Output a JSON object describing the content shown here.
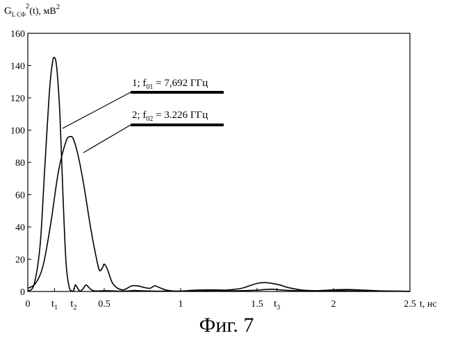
{
  "chart_data": {
    "type": "line",
    "ylabel_main": "G",
    "ylabel_sub": "L CΦ",
    "ylabel_sup": "2",
    "ylabel_rest": "(t), мВ",
    "ylabel_sup2": "2",
    "xlabel": "t, нс",
    "xlim": [
      0,
      2.5
    ],
    "ylim": [
      0,
      160
    ],
    "x_ticks": [
      {
        "value": 0,
        "label": "0"
      },
      {
        "value": 0.5,
        "label": "0.5"
      },
      {
        "value": 1,
        "label": "1"
      },
      {
        "value": 1.5,
        "label": "1.5"
      },
      {
        "value": 2,
        "label": "2"
      },
      {
        "value": 2.5,
        "label": "2.5"
      }
    ],
    "y_ticks": [
      {
        "value": 0,
        "label": "0"
      },
      {
        "value": 20,
        "label": "20"
      },
      {
        "value": 40,
        "label": "40"
      },
      {
        "value": 60,
        "label": "60"
      },
      {
        "value": 80,
        "label": "80"
      },
      {
        "value": 100,
        "label": "100"
      },
      {
        "value": 120,
        "label": "120"
      },
      {
        "value": 140,
        "label": "140"
      },
      {
        "value": 160,
        "label": "160"
      }
    ],
    "time_markers": [
      {
        "value": 0.175,
        "label": "t",
        "sub": "1"
      },
      {
        "value": 0.3,
        "label": "t",
        "sub": "2"
      },
      {
        "value": 1.63,
        "label": "t",
        "sub": "3"
      }
    ],
    "grid": false,
    "series": [
      {
        "label_id": "1",
        "label_freq": "f",
        "label_freq_sub": "01",
        "label_value": " = 7,692 ГГц",
        "x": [
          0.0,
          0.04,
          0.08,
          0.11,
          0.14,
          0.16,
          0.175,
          0.19,
          0.21,
          0.23,
          0.25,
          0.27,
          0.285,
          0.3,
          0.31,
          0.32,
          0.34,
          0.36,
          0.38,
          0.4,
          0.42,
          0.45,
          0.5,
          0.55,
          0.6,
          0.65,
          0.7,
          0.75,
          0.8,
          0.85,
          0.9,
          1.0,
          1.1,
          1.2,
          1.3,
          1.4,
          1.5,
          1.55,
          1.6,
          1.65,
          1.7,
          1.8,
          1.9,
          2.0,
          2.1,
          2.2,
          2.3,
          2.4,
          2.5
        ],
        "y": [
          0.3,
          4,
          28,
          75,
          122,
          141,
          145,
          138,
          110,
          60,
          18,
          3,
          0.5,
          0.5,
          4,
          3,
          0.3,
          1.5,
          4,
          2.5,
          0.8,
          0.3,
          0.5,
          0.4,
          0.2,
          0.3,
          0.6,
          0.4,
          0.3,
          0.2,
          0.2,
          0.2,
          0.3,
          0.3,
          0.4,
          0.5,
          0.8,
          1.2,
          1.4,
          1.0,
          0.7,
          0.4,
          0.4,
          0.5,
          0.4,
          0.3,
          0.3,
          0.2,
          0.1
        ]
      },
      {
        "label_id": "2",
        "label_freq": "f",
        "label_freq_sub": "02",
        "label_value": " = 3.226 ГГц",
        "x": [
          0.0,
          0.05,
          0.1,
          0.15,
          0.2,
          0.25,
          0.28,
          0.3,
          0.33,
          0.37,
          0.41,
          0.45,
          0.47,
          0.49,
          0.5,
          0.52,
          0.55,
          0.58,
          0.62,
          0.65,
          0.68,
          0.72,
          0.76,
          0.8,
          0.83,
          0.86,
          0.9,
          0.95,
          1.0,
          1.1,
          1.2,
          1.3,
          1.4,
          1.45,
          1.5,
          1.55,
          1.6,
          1.65,
          1.7,
          1.8,
          1.9,
          2.0,
          2.1,
          2.2,
          2.3,
          2.4,
          2.5
        ],
        "y": [
          2,
          5,
          16,
          42,
          74,
          93,
          96,
          94,
          84,
          64,
          40,
          20,
          13,
          15,
          17,
          14,
          6,
          2.5,
          1,
          2,
          3.5,
          3.5,
          2.5,
          2,
          3.5,
          2.5,
          1,
          0.3,
          0.3,
          0.8,
          1,
          0.9,
          2,
          3.5,
          5,
          5.5,
          5,
          4,
          2.5,
          0.8,
          0.5,
          1,
          1.2,
          0.8,
          0.4,
          0.2,
          0.1
        ]
      }
    ]
  },
  "figure_caption": "Фиг. 7"
}
